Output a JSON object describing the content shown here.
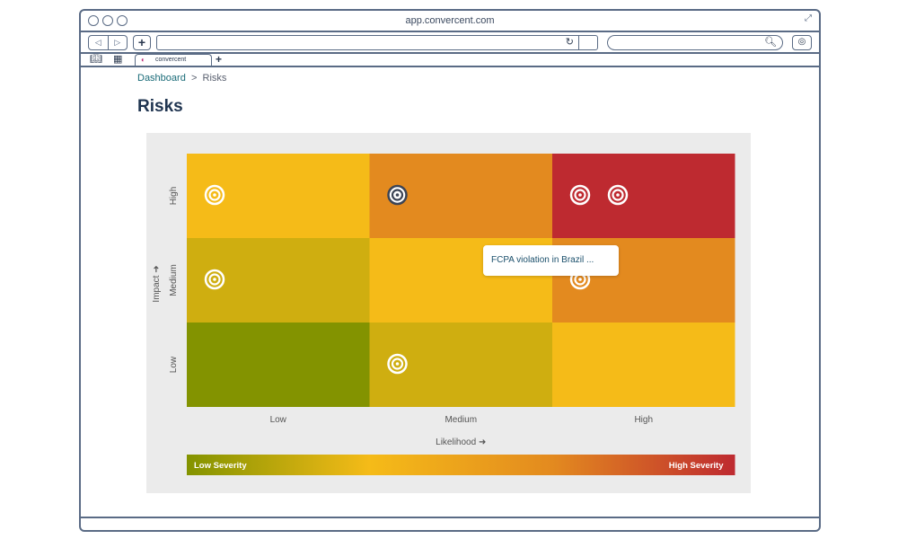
{
  "browser": {
    "url_title": "app.convercent.com",
    "nav_back": "◁",
    "nav_forward": "▷",
    "new_tab_plus": "+",
    "reload_icon": "reload-icon",
    "search_icon": "search-icon",
    "download_icon": "download-icon"
  },
  "tab": {
    "label": "convercent",
    "new_tab": "+"
  },
  "breadcrumb": {
    "root": "Dashboard",
    "separator": ">",
    "current": "Risks"
  },
  "page": {
    "title": "Risks"
  },
  "matrix": {
    "y_axis_label": "Impact ➜",
    "x_axis_label": "Likelihood ➜",
    "rows": [
      "High",
      "Medium",
      "Low"
    ],
    "columns": [
      "Low",
      "Medium",
      "High"
    ],
    "cell_colors": [
      [
        "#f5bb18",
        "#e38a1f",
        "#be2a30"
      ],
      [
        "#cfae10",
        "#f5bb18",
        "#e38a1f"
      ],
      [
        "#839300",
        "#cfae10",
        "#f5bb18"
      ]
    ],
    "risks": [
      {
        "row": "High",
        "col": "Low",
        "slot": 0,
        "selected": false
      },
      {
        "row": "High",
        "col": "Medium",
        "slot": 0,
        "selected": true
      },
      {
        "row": "High",
        "col": "High",
        "slot": 0,
        "selected": false
      },
      {
        "row": "High",
        "col": "High",
        "slot": 1,
        "selected": false
      },
      {
        "row": "Medium",
        "col": "Low",
        "slot": 0,
        "selected": false
      },
      {
        "row": "Medium",
        "col": "High",
        "slot": 0,
        "selected": false
      },
      {
        "row": "Low",
        "col": "Medium",
        "slot": 0,
        "selected": false
      }
    ],
    "tooltip_text": "FCPA violation in Brazil ...",
    "severity_low_label": "Low Severity",
    "severity_high_label": "High Severity",
    "severity_gradient": [
      "#839300",
      "#f5bb18",
      "#e38a1f",
      "#be2a30"
    ]
  }
}
